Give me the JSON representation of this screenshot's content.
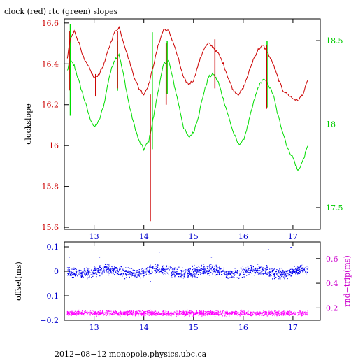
{
  "chart_data": [
    {
      "type": "line",
      "title": "clock (red) rtc (green) slopes",
      "xlabel": "",
      "ylabel": "clockslope",
      "y2label": "",
      "xlim": [
        12.4,
        17.55
      ],
      "ylim": [
        15.59,
        16.62
      ],
      "y2lim": [
        17.37,
        18.63
      ],
      "xticks": [
        13,
        14,
        15,
        16,
        17
      ],
      "yticks": [
        15.6,
        15.8,
        16,
        16.2,
        16.4,
        16.6
      ],
      "y2ticks": [
        17.5,
        18,
        18.5
      ],
      "grid": false,
      "colors": {
        "clock": "#cc0000",
        "rtc": "#00dd00",
        "axis_left": "#cc0000",
        "axis_right": "#00cc00"
      },
      "series": [
        {
          "key": "clock",
          "axis": "left",
          "x": [
            12.46,
            12.52,
            12.6,
            12.7,
            12.8,
            12.9,
            13.0,
            13.1,
            13.2,
            13.3,
            13.4,
            13.5,
            13.6,
            13.7,
            13.8,
            13.9,
            14.0,
            14.1,
            14.2,
            14.3,
            14.4,
            14.5,
            14.6,
            14.7,
            14.8,
            14.9,
            15.0,
            15.1,
            15.2,
            15.3,
            15.4,
            15.5,
            15.6,
            15.7,
            15.8,
            15.9,
            16.0,
            16.1,
            16.2,
            16.3,
            16.4,
            16.5,
            16.6,
            16.7,
            16.8,
            16.9,
            17.0,
            17.1,
            17.2,
            17.3
          ],
          "y": [
            16.43,
            16.52,
            16.56,
            16.5,
            16.42,
            16.38,
            16.33,
            16.35,
            16.4,
            16.48,
            16.55,
            16.58,
            16.5,
            16.42,
            16.34,
            16.28,
            16.25,
            16.3,
            16.4,
            16.5,
            16.57,
            16.56,
            16.5,
            16.42,
            16.33,
            16.3,
            16.32,
            16.4,
            16.47,
            16.5,
            16.48,
            16.45,
            16.4,
            16.33,
            16.27,
            16.25,
            16.28,
            16.35,
            16.42,
            16.47,
            16.49,
            16.45,
            16.4,
            16.33,
            16.27,
            16.25,
            16.23,
            16.22,
            16.25,
            16.32
          ],
          "spikes": [
            {
              "x": 12.5,
              "low": 16.27,
              "high": 16.56
            },
            {
              "x": 13.03,
              "low": 16.24,
              "high": 16.35
            },
            {
              "x": 13.47,
              "low": 16.28,
              "high": 16.56
            },
            {
              "x": 14.13,
              "low": 15.63,
              "high": 16.25
            },
            {
              "x": 14.45,
              "low": 16.2,
              "high": 16.5
            },
            {
              "x": 15.43,
              "low": 16.28,
              "high": 16.52
            },
            {
              "x": 16.47,
              "low": 16.18,
              "high": 16.49
            }
          ]
        },
        {
          "key": "rtc",
          "axis": "right",
          "x": [
            12.46,
            12.52,
            12.6,
            12.7,
            12.8,
            12.9,
            13.0,
            13.1,
            13.2,
            13.3,
            13.4,
            13.5,
            13.6,
            13.7,
            13.8,
            13.9,
            14.0,
            14.1,
            14.2,
            14.3,
            14.4,
            14.5,
            14.6,
            14.7,
            14.8,
            14.9,
            15.0,
            15.1,
            15.2,
            15.3,
            15.4,
            15.5,
            15.6,
            15.7,
            15.8,
            15.9,
            16.0,
            16.1,
            16.2,
            16.3,
            16.4,
            16.5,
            16.6,
            16.7,
            16.8,
            16.9,
            17.0,
            17.1,
            17.2,
            17.3
          ],
          "y": [
            18.32,
            18.38,
            18.35,
            18.25,
            18.15,
            18.05,
            17.98,
            18.02,
            18.12,
            18.28,
            18.38,
            18.42,
            18.28,
            18.12,
            18.0,
            17.9,
            17.85,
            17.9,
            18.05,
            18.22,
            18.36,
            18.38,
            18.25,
            18.12,
            17.98,
            17.92,
            17.95,
            18.05,
            18.18,
            18.28,
            18.3,
            18.25,
            18.15,
            18.05,
            17.95,
            17.88,
            17.9,
            18.0,
            18.12,
            18.22,
            18.27,
            18.24,
            18.18,
            18.05,
            17.95,
            17.85,
            17.8,
            17.72,
            17.78,
            17.87
          ],
          "spikes": [
            {
              "x": 12.52,
              "low": 18.05,
              "high": 18.6
            },
            {
              "x": 13.47,
              "low": 18.2,
              "high": 18.5
            },
            {
              "x": 14.17,
              "low": 17.85,
              "high": 18.55
            },
            {
              "x": 14.47,
              "low": 18.18,
              "high": 18.5
            },
            {
              "x": 16.48,
              "low": 18.1,
              "high": 18.5
            }
          ]
        }
      ]
    },
    {
      "type": "scatter",
      "title": "",
      "xlabel": "",
      "ylabel": "offset(ms)",
      "y2label": "rnd−trip(ms)",
      "xlim": [
        12.4,
        17.55
      ],
      "ylim": [
        -0.2,
        0.12
      ],
      "y2lim": [
        0.1,
        0.735
      ],
      "xticks": [
        13,
        14,
        15,
        16,
        17
      ],
      "yticks": [
        -0.2,
        -0.1,
        0,
        0.1
      ],
      "ytick_labels": [
        "−0.2",
        "−0.1",
        "0",
        "0.1"
      ],
      "y2ticks": [
        0.2,
        0.4,
        0.6
      ],
      "grid": false,
      "colors": {
        "offset": "#0000ee",
        "rndtrip": "#ff00ff",
        "axis_left": "#0000cc",
        "axis_right": "#cc00cc"
      },
      "series": [
        {
          "key": "offset",
          "axis": "left",
          "x_range": [
            12.45,
            17.3
          ],
          "center": 0.0,
          "spread": 0.02,
          "band": [
            -0.03,
            0.03
          ],
          "outliers": [
            [
              12.49,
              0.06
            ],
            [
              13.1,
              0.06
            ],
            [
              14.12,
              -0.04
            ],
            [
              14.3,
              0.08
            ],
            [
              15.35,
              0.06
            ],
            [
              16.5,
              0.09
            ],
            [
              16.95,
              0.1
            ]
          ]
        },
        {
          "key": "rndtrip",
          "axis": "right",
          "x_range": [
            12.45,
            17.3
          ],
          "center": 0.16,
          "spread": 0.01,
          "band": [
            0.13,
            0.19
          ]
        }
      ]
    }
  ],
  "footer": "2012−08−12  monopole.physics.ubc.ca"
}
